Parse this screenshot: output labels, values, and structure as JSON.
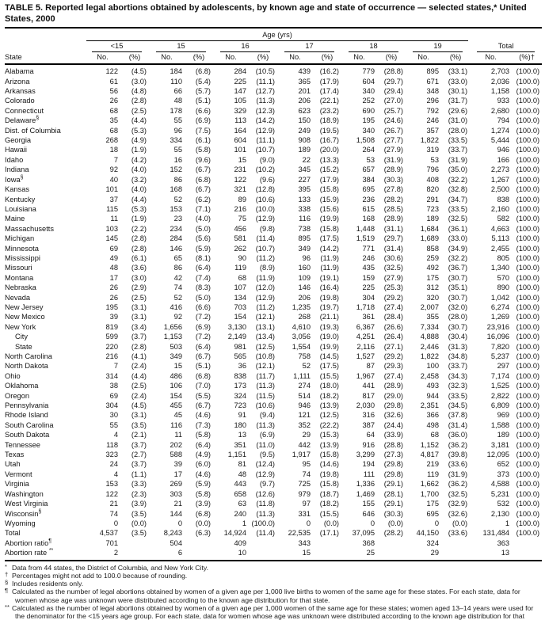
{
  "title": "TABLE 5. Reported legal abortions obtained by adolescents, by known age and state of occurrence — selected states,* United States, 2000",
  "header": {
    "age_span_label": "Age (yrs)",
    "state_col_label": "State",
    "age_groups": [
      "<15",
      "15",
      "16",
      "17",
      "18",
      "19"
    ],
    "total_label": "Total",
    "no_label": "No.",
    "pct_label": "(%)",
    "total_pct_label": "(%)†"
  },
  "rows": [
    {
      "state": "Alabama",
      "sup": "",
      "indent": false,
      "cells": [
        "122",
        "(4.5)",
        "184",
        "(6.8)",
        "284",
        "(10.5)",
        "439",
        "(16.2)",
        "779",
        "(28.8)",
        "895",
        "(33.1)",
        "2,703",
        "(100.0)"
      ]
    },
    {
      "state": "Arizona",
      "sup": "",
      "indent": false,
      "cells": [
        "61",
        "(3.0)",
        "110",
        "(5.4)",
        "225",
        "(11.1)",
        "365",
        "(17.9)",
        "604",
        "(29.7)",
        "671",
        "(33.0)",
        "2,036",
        "(100.0)"
      ]
    },
    {
      "state": "Arkansas",
      "sup": "",
      "indent": false,
      "cells": [
        "56",
        "(4.8)",
        "66",
        "(5.7)",
        "147",
        "(12.7)",
        "201",
        "(17.4)",
        "340",
        "(29.4)",
        "348",
        "(30.1)",
        "1,158",
        "(100.0)"
      ]
    },
    {
      "state": "Colorado",
      "sup": "",
      "indent": false,
      "cells": [
        "26",
        "(2.8)",
        "48",
        "(5.1)",
        "105",
        "(11.3)",
        "206",
        "(22.1)",
        "252",
        "(27.0)",
        "296",
        "(31.7)",
        "933",
        "(100.0)"
      ]
    },
    {
      "state": "Connecticut",
      "sup": "",
      "indent": false,
      "cells": [
        "68",
        "(2.5)",
        "178",
        "(6.6)",
        "329",
        "(12.3)",
        "623",
        "(23.2)",
        "690",
        "(25.7)",
        "792",
        "(29.6)",
        "2,680",
        "(100.0)"
      ]
    },
    {
      "state": "Delaware",
      "sup": "§",
      "indent": false,
      "cells": [
        "35",
        "(4.4)",
        "55",
        "(6.9)",
        "113",
        "(14.2)",
        "150",
        "(18.9)",
        "195",
        "(24.6)",
        "246",
        "(31.0)",
        "794",
        "(100.0)"
      ]
    },
    {
      "state": "Dist. of Columbia",
      "sup": "",
      "indent": false,
      "cells": [
        "68",
        "(5.3)",
        "96",
        "(7.5)",
        "164",
        "(12.9)",
        "249",
        "(19.5)",
        "340",
        "(26.7)",
        "357",
        "(28.0)",
        "1,274",
        "(100.0)"
      ]
    },
    {
      "state": "Georgia",
      "sup": "",
      "indent": false,
      "cells": [
        "268",
        "(4.9)",
        "334",
        "(6.1)",
        "604",
        "(11.1)",
        "908",
        "(16.7)",
        "1,508",
        "(27.7)",
        "1,822",
        "(33.5)",
        "5,444",
        "(100.0)"
      ]
    },
    {
      "state": "Hawaii",
      "sup": "",
      "indent": false,
      "cells": [
        "18",
        "(1.9)",
        "55",
        "(5.8)",
        "101",
        "(10.7)",
        "189",
        "(20.0)",
        "264",
        "(27.9)",
        "319",
        "(33.7)",
        "946",
        "(100.0)"
      ]
    },
    {
      "state": "Idaho",
      "sup": "",
      "indent": false,
      "cells": [
        "7",
        "(4.2)",
        "16",
        "(9.6)",
        "15",
        "(9.0)",
        "22",
        "(13.3)",
        "53",
        "(31.9)",
        "53",
        "(31.9)",
        "166",
        "(100.0)"
      ]
    },
    {
      "state": "Indiana",
      "sup": "",
      "indent": false,
      "cells": [
        "92",
        "(4.0)",
        "152",
        "(6.7)",
        "231",
        "(10.2)",
        "345",
        "(15.2)",
        "657",
        "(28.9)",
        "796",
        "(35.0)",
        "2,273",
        "(100.0)"
      ]
    },
    {
      "state": "Iowa",
      "sup": "§",
      "indent": false,
      "cells": [
        "40",
        "(3.2)",
        "86",
        "(6.8)",
        "122",
        "(9.6)",
        "227",
        "(17.9)",
        "384",
        "(30.3)",
        "408",
        "(32.2)",
        "1,267",
        "(100.0)"
      ]
    },
    {
      "state": "Kansas",
      "sup": "",
      "indent": false,
      "cells": [
        "101",
        "(4.0)",
        "168",
        "(6.7)",
        "321",
        "(12.8)",
        "395",
        "(15.8)",
        "695",
        "(27.8)",
        "820",
        "(32.8)",
        "2,500",
        "(100.0)"
      ]
    },
    {
      "state": "Kentucky",
      "sup": "",
      "indent": false,
      "cells": [
        "37",
        "(4.4)",
        "52",
        "(6.2)",
        "89",
        "(10.6)",
        "133",
        "(15.9)",
        "236",
        "(28.2)",
        "291",
        "(34.7)",
        "838",
        "(100.0)"
      ]
    },
    {
      "state": "Louisiana",
      "sup": "",
      "indent": false,
      "cells": [
        "115",
        "(5.3)",
        "153",
        "(7.1)",
        "216",
        "(10.0)",
        "338",
        "(15.6)",
        "615",
        "(28.5)",
        "723",
        "(33.5)",
        "2,160",
        "(100.0)"
      ]
    },
    {
      "state": "Maine",
      "sup": "",
      "indent": false,
      "cells": [
        "11",
        "(1.9)",
        "23",
        "(4.0)",
        "75",
        "(12.9)",
        "116",
        "(19.9)",
        "168",
        "(28.9)",
        "189",
        "(32.5)",
        "582",
        "(100.0)"
      ]
    },
    {
      "state": "Massachusetts",
      "sup": "",
      "indent": false,
      "cells": [
        "103",
        "(2.2)",
        "234",
        "(5.0)",
        "456",
        "(9.8)",
        "738",
        "(15.8)",
        "1,448",
        "(31.1)",
        "1,684",
        "(36.1)",
        "4,663",
        "(100.0)"
      ]
    },
    {
      "state": "Michigan",
      "sup": "",
      "indent": false,
      "cells": [
        "145",
        "(2.8)",
        "284",
        "(5.6)",
        "581",
        "(11.4)",
        "895",
        "(17.5)",
        "1,519",
        "(29.7)",
        "1,689",
        "(33.0)",
        "5,113",
        "(100.0)"
      ]
    },
    {
      "state": "Minnesota",
      "sup": "",
      "indent": false,
      "cells": [
        "69",
        "(2.8)",
        "146",
        "(5.9)",
        "262",
        "(10.7)",
        "349",
        "(14.2)",
        "771",
        "(31.4)",
        "858",
        "(34.9)",
        "2,455",
        "(100.0)"
      ]
    },
    {
      "state": "Mississippi",
      "sup": "",
      "indent": false,
      "cells": [
        "49",
        "(6.1)",
        "65",
        "(8.1)",
        "90",
        "(11.2)",
        "96",
        "(11.9)",
        "246",
        "(30.6)",
        "259",
        "(32.2)",
        "805",
        "(100.0)"
      ]
    },
    {
      "state": "Missouri",
      "sup": "",
      "indent": false,
      "cells": [
        "48",
        "(3.6)",
        "86",
        "(6.4)",
        "119",
        "(8.9)",
        "160",
        "(11.9)",
        "435",
        "(32.5)",
        "492",
        "(36.7)",
        "1,340",
        "(100.0)"
      ]
    },
    {
      "state": "Montana",
      "sup": "",
      "indent": false,
      "cells": [
        "17",
        "(3.0)",
        "42",
        "(7.4)",
        "68",
        "(11.9)",
        "109",
        "(19.1)",
        "159",
        "(27.9)",
        "175",
        "(30.7)",
        "570",
        "(100.0)"
      ]
    },
    {
      "state": "Nebraska",
      "sup": "",
      "indent": false,
      "cells": [
        "26",
        "(2.9)",
        "74",
        "(8.3)",
        "107",
        "(12.0)",
        "146",
        "(16.4)",
        "225",
        "(25.3)",
        "312",
        "(35.1)",
        "890",
        "(100.0)"
      ]
    },
    {
      "state": "Nevada",
      "sup": "",
      "indent": false,
      "cells": [
        "26",
        "(2.5)",
        "52",
        "(5.0)",
        "134",
        "(12.9)",
        "206",
        "(19.8)",
        "304",
        "(29.2)",
        "320",
        "(30.7)",
        "1,042",
        "(100.0)"
      ]
    },
    {
      "state": "New Jersey",
      "sup": "",
      "indent": false,
      "cells": [
        "195",
        "(3.1)",
        "416",
        "(6.6)",
        "703",
        "(11.2)",
        "1,235",
        "(19.7)",
        "1,718",
        "(27.4)",
        "2,007",
        "(32.0)",
        "6,274",
        "(100.0)"
      ]
    },
    {
      "state": "New Mexico",
      "sup": "",
      "indent": false,
      "cells": [
        "39",
        "(3.1)",
        "92",
        "(7.2)",
        "154",
        "(12.1)",
        "268",
        "(21.1)",
        "361",
        "(28.4)",
        "355",
        "(28.0)",
        "1,269",
        "(100.0)"
      ]
    },
    {
      "state": "New York",
      "sup": "",
      "indent": false,
      "cells": [
        "819",
        "(3.4)",
        "1,656",
        "(6.9)",
        "3,130",
        "(13.1)",
        "4,610",
        "(19.3)",
        "6,367",
        "(26.6)",
        "7,334",
        "(30.7)",
        "23,916",
        "(100.0)"
      ]
    },
    {
      "state": "City",
      "sup": "",
      "indent": true,
      "cells": [
        "599",
        "(3.7)",
        "1,153",
        "(7.2)",
        "2,149",
        "(13.4)",
        "3,056",
        "(19.0)",
        "4,251",
        "(26.4)",
        "4,888",
        "(30.4)",
        "16,096",
        "(100.0)"
      ]
    },
    {
      "state": "State",
      "sup": "",
      "indent": true,
      "cells": [
        "220",
        "(2.8)",
        "503",
        "(6.4)",
        "981",
        "(12.5)",
        "1,554",
        "(19.9)",
        "2,116",
        "(27.1)",
        "2,446",
        "(31.3)",
        "7,820",
        "(100.0)"
      ]
    },
    {
      "state": "North Carolina",
      "sup": "",
      "indent": false,
      "cells": [
        "216",
        "(4.1)",
        "349",
        "(6.7)",
        "565",
        "(10.8)",
        "758",
        "(14.5)",
        "1,527",
        "(29.2)",
        "1,822",
        "(34.8)",
        "5,237",
        "(100.0)"
      ]
    },
    {
      "state": "North Dakota",
      "sup": "",
      "indent": false,
      "cells": [
        "7",
        "(2.4)",
        "15",
        "(5.1)",
        "36",
        "(12.1)",
        "52",
        "(17.5)",
        "87",
        "(29.3)",
        "100",
        "(33.7)",
        "297",
        "(100.0)"
      ]
    },
    {
      "state": "Ohio",
      "sup": "",
      "indent": false,
      "cells": [
        "314",
        "(4.4)",
        "486",
        "(6.8)",
        "838",
        "(11.7)",
        "1,111",
        "(15.5)",
        "1,967",
        "(27.4)",
        "2,458",
        "(34.3)",
        "7,174",
        "(100.0)"
      ]
    },
    {
      "state": "Oklahoma",
      "sup": "",
      "indent": false,
      "cells": [
        "38",
        "(2.5)",
        "106",
        "(7.0)",
        "173",
        "(11.3)",
        "274",
        "(18.0)",
        "441",
        "(28.9)",
        "493",
        "(32.3)",
        "1,525",
        "(100.0)"
      ]
    },
    {
      "state": "Oregon",
      "sup": "",
      "indent": false,
      "cells": [
        "69",
        "(2.4)",
        "154",
        "(5.5)",
        "324",
        "(11.5)",
        "514",
        "(18.2)",
        "817",
        "(29.0)",
        "944",
        "(33.5)",
        "2,822",
        "(100.0)"
      ]
    },
    {
      "state": "Pennsylvania",
      "sup": "",
      "indent": false,
      "cells": [
        "304",
        "(4.5)",
        "455",
        "(6.7)",
        "723",
        "(10.6)",
        "946",
        "(13.9)",
        "2,030",
        "(29.8)",
        "2,351",
        "(34.5)",
        "6,809",
        "(100.0)"
      ]
    },
    {
      "state": "Rhode Island",
      "sup": "",
      "indent": false,
      "cells": [
        "30",
        "(3.1)",
        "45",
        "(4.6)",
        "91",
        "(9.4)",
        "121",
        "(12.5)",
        "316",
        "(32.6)",
        "366",
        "(37.8)",
        "969",
        "(100.0)"
      ]
    },
    {
      "state": "South Carolina",
      "sup": "",
      "indent": false,
      "cells": [
        "55",
        "(3.5)",
        "116",
        "(7.3)",
        "180",
        "(11.3)",
        "352",
        "(22.2)",
        "387",
        "(24.4)",
        "498",
        "(31.4)",
        "1,588",
        "(100.0)"
      ]
    },
    {
      "state": "South Dakota",
      "sup": "",
      "indent": false,
      "cells": [
        "4",
        "(2.1)",
        "11",
        "(5.8)",
        "13",
        "(6.9)",
        "29",
        "(15.3)",
        "64",
        "(33.9)",
        "68",
        "(36.0)",
        "189",
        "(100.0)"
      ]
    },
    {
      "state": "Tennessee",
      "sup": "",
      "indent": false,
      "cells": [
        "118",
        "(3.7)",
        "202",
        "(6.4)",
        "351",
        "(11.0)",
        "442",
        "(13.9)",
        "916",
        "(28.8)",
        "1,152",
        "(36.2)",
        "3,181",
        "(100.0)"
      ]
    },
    {
      "state": "Texas",
      "sup": "",
      "indent": false,
      "cells": [
        "323",
        "(2.7)",
        "588",
        "(4.9)",
        "1,151",
        "(9.5)",
        "1,917",
        "(15.8)",
        "3,299",
        "(27.3)",
        "4,817",
        "(39.8)",
        "12,095",
        "(100.0)"
      ]
    },
    {
      "state": "Utah",
      "sup": "",
      "indent": false,
      "cells": [
        "24",
        "(3.7)",
        "39",
        "(6.0)",
        "81",
        "(12.4)",
        "95",
        "(14.6)",
        "194",
        "(29.8)",
        "219",
        "(33.6)",
        "652",
        "(100.0)"
      ]
    },
    {
      "state": "Vermont",
      "sup": "",
      "indent": false,
      "cells": [
        "4",
        "(1.1)",
        "17",
        "(4.6)",
        "48",
        "(12.9)",
        "74",
        "(19.8)",
        "111",
        "(29.8)",
        "119",
        "(31.9)",
        "373",
        "(100.0)"
      ]
    },
    {
      "state": "Virginia",
      "sup": "",
      "indent": false,
      "cells": [
        "153",
        "(3.3)",
        "269",
        "(5.9)",
        "443",
        "(9.7)",
        "725",
        "(15.8)",
        "1,336",
        "(29.1)",
        "1,662",
        "(36.2)",
        "4,588",
        "(100.0)"
      ]
    },
    {
      "state": "Washington",
      "sup": "",
      "indent": false,
      "cells": [
        "122",
        "(2.3)",
        "303",
        "(5.8)",
        "658",
        "(12.6)",
        "979",
        "(18.7)",
        "1,469",
        "(28.1)",
        "1,700",
        "(32.5)",
        "5,231",
        "(100.0)"
      ]
    },
    {
      "state": "West Virginia",
      "sup": "",
      "indent": false,
      "cells": [
        "21",
        "(3.9)",
        "21",
        "(3.9)",
        "63",
        "(11.8)",
        "97",
        "(18.2)",
        "155",
        "(29.1)",
        "175",
        "(32.9)",
        "532",
        "(100.0)"
      ]
    },
    {
      "state": "Wisconsin",
      "sup": "§",
      "indent": false,
      "cells": [
        "74",
        "(3.5)",
        "144",
        "(6.8)",
        "240",
        "(11.3)",
        "331",
        "(15.5)",
        "646",
        "(30.3)",
        "695",
        "(32.6)",
        "2,130",
        "(100.0)"
      ]
    },
    {
      "state": "Wyoming",
      "sup": "",
      "indent": false,
      "cells": [
        "0",
        "(0.0)",
        "0",
        "(0.0)",
        "1",
        "(100.0)",
        "0",
        "(0.0)",
        "0",
        "(0.0)",
        "0",
        "(0.0)",
        "1",
        "(100.0)"
      ]
    },
    {
      "state": "Total",
      "sup": "",
      "indent": false,
      "cells": [
        "4,537",
        "(3.5)",
        "8,243",
        "(6.3)",
        "14,924",
        "(11.4)",
        "22,535",
        "(17.1)",
        "37,095",
        "(28.2)",
        "44,150",
        "(33.6)",
        "131,484",
        "(100.0)"
      ]
    },
    {
      "state": "Abortion ratio",
      "sup": "¶",
      "indent": false,
      "cells": [
        "701",
        "",
        "504",
        "",
        "409",
        "",
        "343",
        "",
        "368",
        "",
        "324",
        "",
        "363",
        ""
      ]
    },
    {
      "state": "Abortion rate ",
      "sup": "**",
      "indent": false,
      "cells": [
        "2",
        "",
        "6",
        "",
        "10",
        "",
        "15",
        "",
        "25",
        "",
        "29",
        "",
        "13",
        ""
      ]
    }
  ],
  "footnotes": [
    {
      "marker": "*",
      "text": "Data from 44 states, the District of Columbia, and New York City."
    },
    {
      "marker": "†",
      "text": "Percentages might not add to 100.0 because of rounding."
    },
    {
      "marker": "§",
      "text": "Includes residents only."
    },
    {
      "marker": "¶",
      "text": "Calculated as the number of legal abortions obtained by women of a given age per 1,000 live births to women of the same age for these states. For each state, data for women whose age was unknown were distributed according to the known age distribution for that state."
    },
    {
      "marker": "**",
      "text": "Calculated as the number of legal abortions obtained by women of a given age per 1,000 women of the same age for these states; women aged 13–14 years were used for the denominator for the <15 years age group. For each state, data for women whose age was unknown were distributed according to the known age distribution for that state."
    }
  ]
}
